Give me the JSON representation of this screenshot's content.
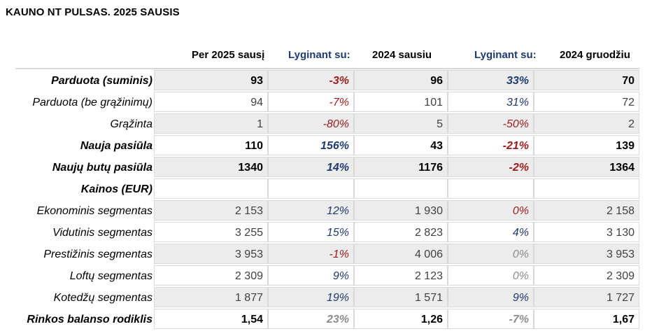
{
  "title": "KAUNO NT PULSAS. 2025 SAUSIS",
  "columns": [
    "Per 2025 sausį",
    "Lyginant su:",
    "2024 sausiu",
    "Lyginant su:",
    "2024 gruodžiu"
  ],
  "rows": [
    {
      "label": "Parduota (suminis)",
      "bold": true,
      "shade": true,
      "v1": "93",
      "c1": "-3%",
      "c1t": "neg",
      "v2": "96",
      "c2": "33%",
      "c2t": "pos",
      "v3": "70"
    },
    {
      "label": "Parduota (be grąžinimų)",
      "bold": false,
      "shade": false,
      "v1": "94",
      "c1": "-7%",
      "c1t": "neg",
      "v2": "101",
      "c2": "31%",
      "c2t": "pos",
      "v3": "72"
    },
    {
      "label": "Grąžinta",
      "bold": false,
      "shade": true,
      "v1": "1",
      "c1": "-80%",
      "c1t": "neg",
      "v2": "5",
      "c2": "-50%",
      "c2t": "neg",
      "v3": "2"
    },
    {
      "label": "Nauja pasiūla",
      "bold": true,
      "shade": false,
      "v1": "110",
      "c1": "156%",
      "c1t": "pos",
      "v2": "43",
      "c2": "-21%",
      "c2t": "neg",
      "v3": "139"
    },
    {
      "label": "Naujų butų pasiūla",
      "bold": true,
      "shade": true,
      "v1": "1340",
      "c1": "14%",
      "c1t": "pos",
      "v2": "1176",
      "c2": "-2%",
      "c2t": "neg",
      "v3": "1364"
    },
    {
      "label": "Kainos (EUR)",
      "bold": true,
      "shade": false,
      "v1": "",
      "c1": "",
      "c1t": "",
      "v2": "",
      "c2": "",
      "c2t": "",
      "v3": ""
    },
    {
      "label": "Ekonominis segmentas",
      "bold": false,
      "shade": true,
      "v1": "2 153",
      "c1": "12%",
      "c1t": "pos",
      "v2": "1 930",
      "c2": "0%",
      "c2t": "neg",
      "v3": "2 158"
    },
    {
      "label": "Vidutinis segmentas",
      "bold": false,
      "shade": false,
      "v1": "3 255",
      "c1": "15%",
      "c1t": "pos",
      "v2": "2 823",
      "c2": "4%",
      "c2t": "pos",
      "v3": "3 130"
    },
    {
      "label": "Prestižinis segmentas",
      "bold": false,
      "shade": true,
      "v1": "3 953",
      "c1": "-1%",
      "c1t": "neg",
      "v2": "4 006",
      "c2": "0%",
      "c2t": "zero",
      "v3": "3 953"
    },
    {
      "label": "Loftų segmentas",
      "bold": false,
      "shade": false,
      "v1": "2 309",
      "c1": "9%",
      "c1t": "pos",
      "v2": "2 123",
      "c2": "0%",
      "c2t": "zero",
      "v3": "2 309"
    },
    {
      "label": "Kotedžų segmentas",
      "bold": false,
      "shade": true,
      "v1": "1 877",
      "c1": "19%",
      "c1t": "pos",
      "v2": "1 571",
      "c2": "9%",
      "c2t": "pos",
      "v3": "1 727"
    },
    {
      "label": "Rinkos balanso rodiklis",
      "bold": true,
      "shade": false,
      "v1": "1,54",
      "c1": "23%",
      "c1t": "gray",
      "v2": "1,26",
      "c2": "-7%",
      "c2t": "gray",
      "v3": "1,67"
    }
  ]
}
